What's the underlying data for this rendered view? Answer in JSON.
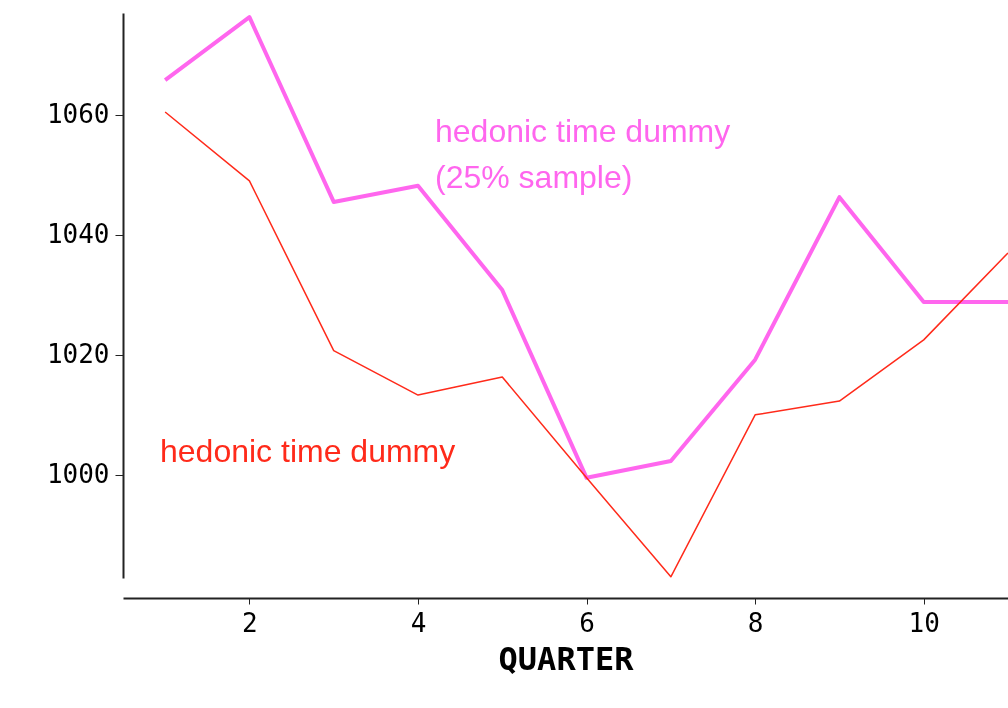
{
  "chart_data": {
    "type": "line",
    "xlabel": "QUARTER",
    "x": [
      1,
      2,
      3,
      4,
      5,
      6,
      7,
      8,
      9,
      10,
      11
    ],
    "series": [
      {
        "color": "#ff66ee",
        "values": [
          1065.8,
          1076.3,
          1045.5,
          1048.2,
          1030.8,
          999.5,
          1002.3,
          1019.2,
          1046.3,
          1028.8,
          1028.8
        ]
      },
      {
        "color": "#ff2a1a",
        "values": [
          1060.5,
          1049,
          1020.7,
          1013.3,
          1016.3,
          999.5,
          983,
          1010,
          1012.3,
          1022.5,
          1037
        ]
      }
    ],
    "annotations": [
      "hedonic time dummy\n(25% sample)",
      "hedonic time dummy"
    ],
    "xlim": [
      0.5,
      11
    ],
    "xticks": [
      2,
      4,
      6,
      8,
      10
    ],
    "ylim": [
      982.8,
      1077
    ],
    "yticks": [
      1000,
      1020,
      1040,
      1060
    ],
    "grid": false,
    "marker": "none",
    "line_style": "solid"
  }
}
